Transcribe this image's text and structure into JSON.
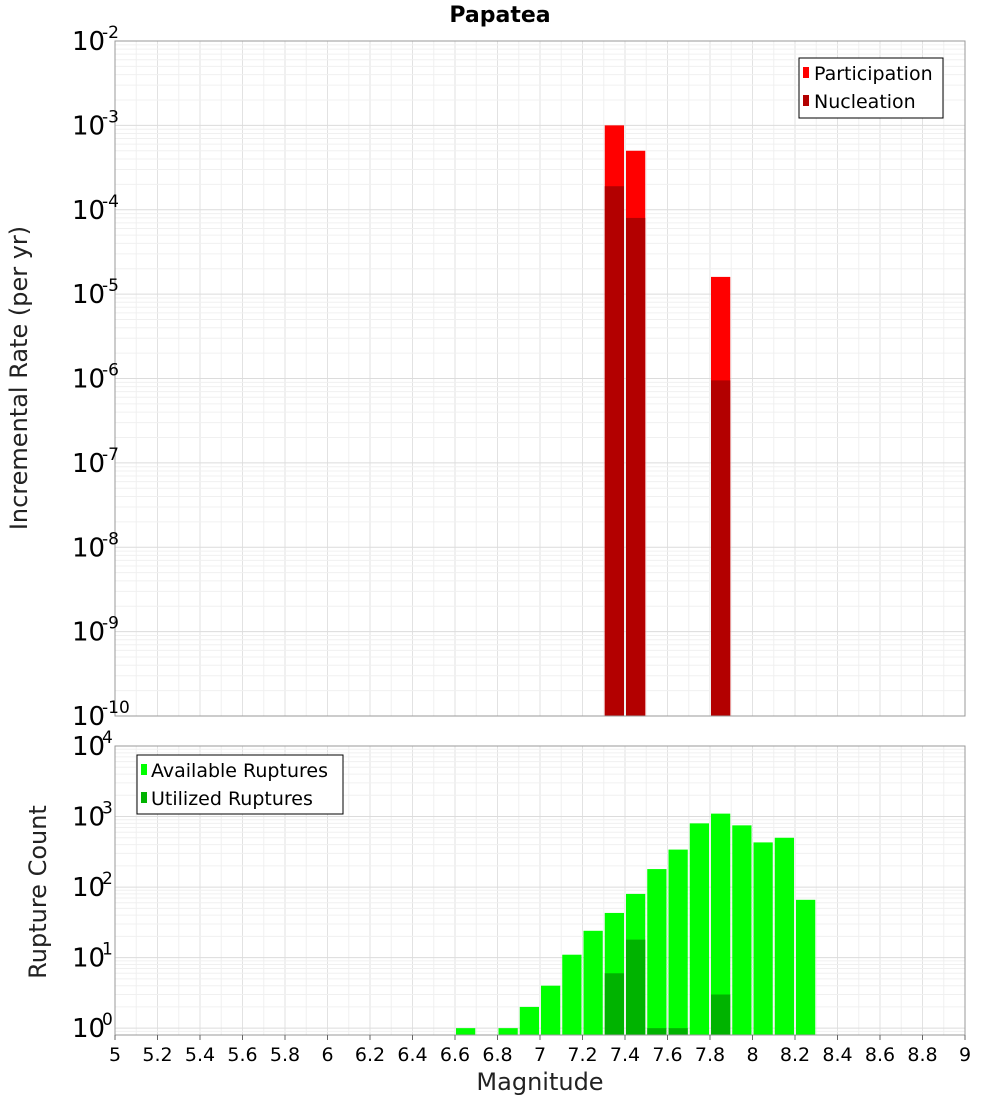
{
  "chart_data": [
    {
      "type": "bar",
      "title": "Papatea",
      "xlabel": "",
      "ylabel": "Incremental Rate (per yr)",
      "yscale": "log",
      "xlim": [
        5,
        9
      ],
      "ylim": [
        1e-10,
        0.01
      ],
      "y_tick_exponents": [
        -2,
        -3,
        -4,
        -5,
        -6,
        -7,
        -8,
        -9,
        -10
      ],
      "grid": true,
      "legend_position": "top-right",
      "bin_width": 0.1,
      "series": [
        {
          "name": "Participation",
          "color": "#ff0000",
          "x": [
            7.35,
            7.45,
            7.85
          ],
          "values": [
            0.001,
            0.0005,
            1.6e-05
          ]
        },
        {
          "name": "Nucleation",
          "color": "#b30000",
          "x": [
            7.35,
            7.45,
            7.85
          ],
          "values": [
            0.00019,
            8e-05,
            9.5e-07
          ]
        }
      ]
    },
    {
      "type": "bar",
      "title": "",
      "xlabel": "Magnitude",
      "ylabel": "Rupture Count",
      "yscale": "log",
      "xlim": [
        5,
        9
      ],
      "ylim": [
        0.8,
        10000
      ],
      "y_tick_exponents": [
        4,
        3,
        2,
        1,
        0
      ],
      "x_ticks": [
        "5",
        "5.2",
        "5.4",
        "5.6",
        "5.8",
        "6",
        "6.2",
        "6.4",
        "6.6",
        "6.8",
        "7",
        "7.2",
        "7.4",
        "7.6",
        "7.8",
        "8",
        "8.2",
        "8.4",
        "8.6",
        "8.8",
        "9"
      ],
      "grid": true,
      "legend_position": "top-left",
      "bin_width": 0.1,
      "series": [
        {
          "name": "Available Ruptures",
          "color": "#00ff00",
          "x": [
            6.65,
            6.85,
            6.95,
            7.05,
            7.15,
            7.25,
            7.35,
            7.45,
            7.55,
            7.65,
            7.75,
            7.85,
            7.95,
            8.05,
            8.15,
            8.25
          ],
          "values": [
            1,
            1,
            2,
            4,
            11,
            24,
            43,
            80,
            180,
            340,
            800,
            1100,
            750,
            430,
            500,
            66
          ]
        },
        {
          "name": "Utilized Ruptures",
          "color": "#00b300",
          "x": [
            7.35,
            7.45,
            7.55,
            7.65,
            7.85
          ],
          "values": [
            6,
            18,
            1,
            1,
            3
          ]
        }
      ]
    }
  ]
}
